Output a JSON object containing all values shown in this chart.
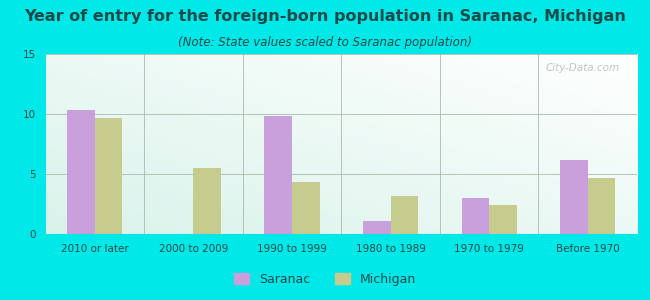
{
  "title": "Year of entry for the foreign-born population in Saranac, Michigan",
  "subtitle": "(Note: State values scaled to Saranac population)",
  "categories": [
    "2010 or later",
    "2000 to 2009",
    "1990 to 1999",
    "1980 to 1989",
    "1970 to 1979",
    "Before 1970"
  ],
  "saranac_values": [
    10.3,
    0,
    9.8,
    1.1,
    3.0,
    6.2
  ],
  "michigan_values": [
    9.7,
    5.5,
    4.3,
    3.2,
    2.4,
    4.7
  ],
  "saranac_color": "#c9a0dc",
  "michigan_color": "#c5cc8e",
  "ylim": [
    0,
    15
  ],
  "yticks": [
    0,
    5,
    10,
    15
  ],
  "background_color": "#00e8e8",
  "bar_width": 0.28,
  "title_fontsize": 11.5,
  "subtitle_fontsize": 8.5,
  "tick_fontsize": 7.5,
  "legend_fontsize": 9,
  "text_color": "#1a4a4a",
  "watermark_text": "City-Data.com"
}
